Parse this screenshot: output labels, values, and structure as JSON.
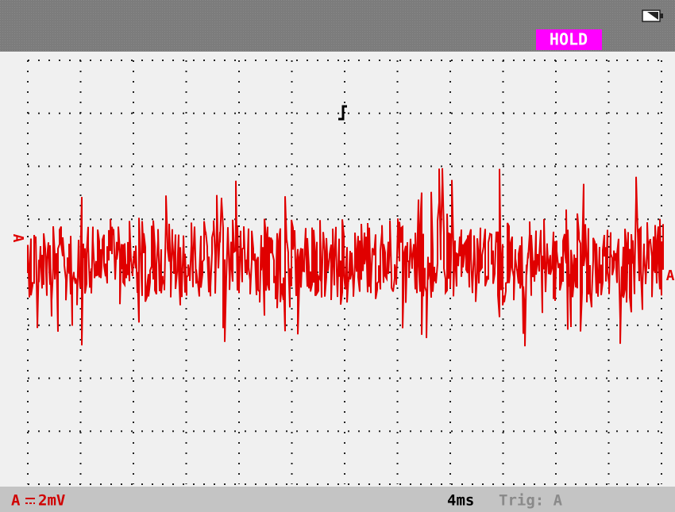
{
  "status": {
    "hold": "HOLD"
  },
  "markers": {
    "left": "A",
    "right": "A"
  },
  "footer": {
    "channel": "A",
    "scale": "2mV",
    "timebase": "4ms",
    "trigger": "Trig: A"
  }
}
